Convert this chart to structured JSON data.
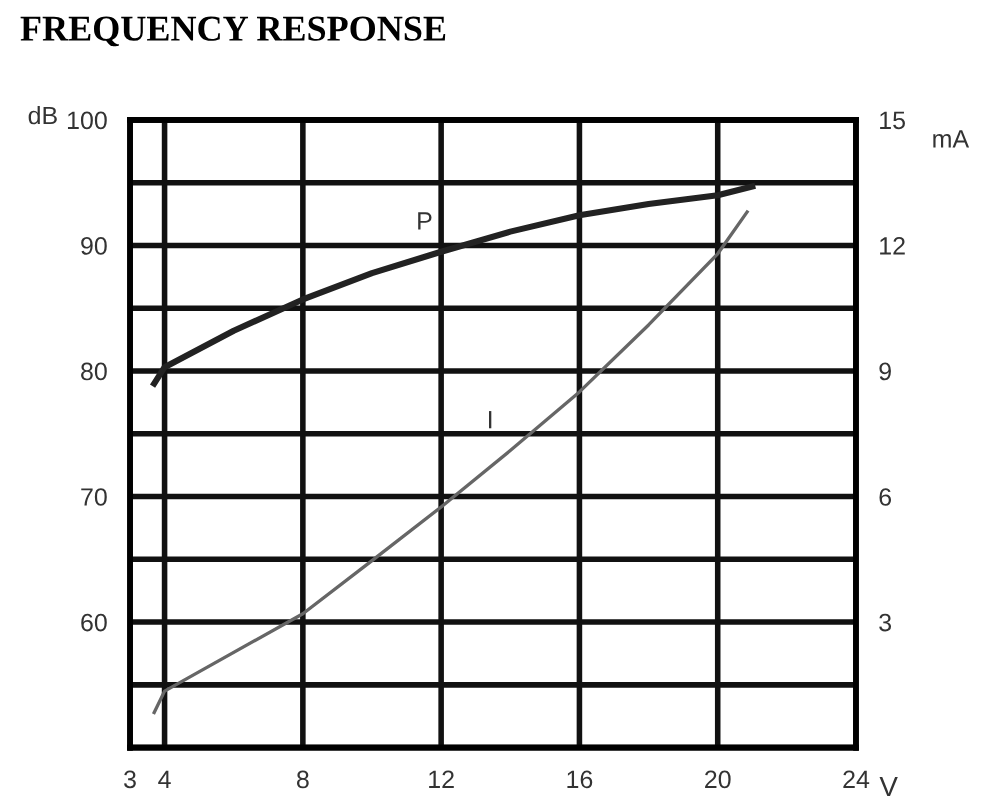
{
  "chart_data": {
    "type": "line",
    "title": "FREQUENCY RESPONSE",
    "xlabel": "V",
    "ylabel": "dB",
    "y2label": "mA",
    "series": [
      {
        "name": "P",
        "color": "#222222",
        "x": [
          3.7,
          4,
          6,
          8,
          10,
          12,
          14,
          16,
          18,
          20,
          21
        ],
        "values": [
          79.0,
          80.3,
          83.2,
          85.7,
          87.8,
          89.5,
          91.1,
          92.4,
          93.3,
          94.0,
          94.7
        ]
      },
      {
        "name": "I",
        "color": "#666666",
        "axis": "y2",
        "x": [
          3.7,
          4,
          8,
          10,
          12,
          14,
          16,
          18,
          20,
          20.85
        ],
        "values": [
          0.84,
          1.35,
          3.2,
          4.47,
          5.75,
          7.1,
          8.5,
          10.1,
          11.8,
          12.8
        ]
      }
    ],
    "xlim": [
      3,
      24
    ],
    "xticks": [
      3,
      4,
      8,
      12,
      16,
      20,
      24
    ],
    "ylim": [
      50,
      100
    ],
    "yticks": [
      {
        "value": 50,
        "label": null
      },
      {
        "value": 55,
        "label": null
      },
      60,
      {
        "value": 65,
        "label": null
      },
      70,
      {
        "value": 75,
        "label": null
      },
      80,
      {
        "value": 85,
        "label": null
      },
      90,
      {
        "value": 95,
        "label": null
      },
      100
    ],
    "y2lim": [
      0,
      15
    ],
    "y2ticks": [
      3,
      6,
      9,
      12,
      15
    ],
    "grid": true,
    "legend": false,
    "marker": "none",
    "line_style": "solid"
  }
}
